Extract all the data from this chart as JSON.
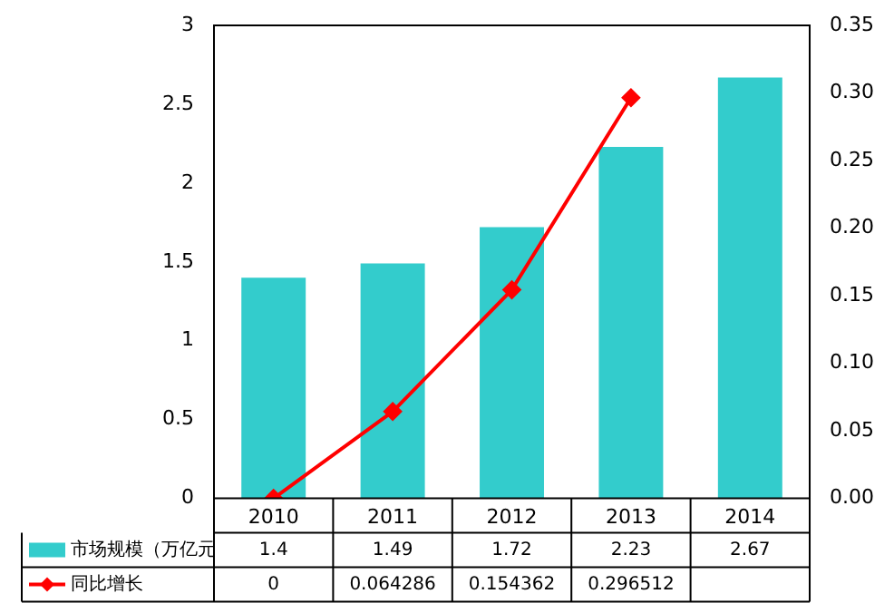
{
  "chart_data": {
    "type": "bar",
    "categories": [
      "2010",
      "2011",
      "2012",
      "2013",
      "2014"
    ],
    "series": [
      {
        "name": "市场规模（万亿元",
        "color": "#33cccc",
        "values": [
          1.4,
          1.49,
          1.72,
          2.23,
          2.67
        ]
      },
      {
        "name": "同比增长",
        "type": "line",
        "axis": "y2",
        "color": "#ff0000",
        "values": [
          0,
          0.064286,
          0.154362,
          0.296512,
          null
        ]
      }
    ],
    "ylim": [
      0,
      3
    ],
    "yticks": [
      0,
      0.5,
      1,
      1.5,
      2,
      2.5,
      3
    ],
    "y2lim": [
      0,
      0.35
    ],
    "y2ticks": [
      {
        "value": 0,
        "label": "0.00"
      },
      {
        "value": 0.05,
        "label": "0.05"
      },
      {
        "value": 0.1,
        "label": "0.10"
      },
      {
        "value": 0.15,
        "label": "0.15"
      },
      {
        "value": 0.2,
        "label": "0.20"
      },
      {
        "value": 0.25,
        "label": "0.25"
      },
      {
        "value": 0.3,
        "label": "0.30"
      },
      {
        "value": 0.35,
        "label": "0.35"
      }
    ],
    "grid": false,
    "legend": "bottom",
    "marker": "diamond",
    "line_style": "solid",
    "data_labels": true
  }
}
